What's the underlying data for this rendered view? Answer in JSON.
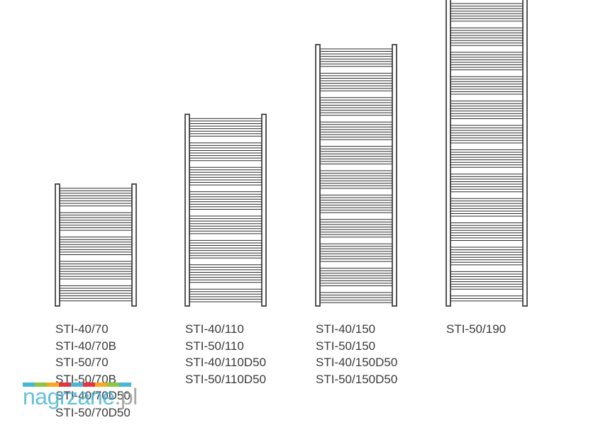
{
  "radiators": [
    {
      "id": "sti-70",
      "height_cm": 70,
      "models": [
        "STI-40/70",
        "STI-40/70B",
        "STI-50/70",
        "STI-50/70B",
        "STI-40/70D50",
        "STI-50/70D50"
      ]
    },
    {
      "id": "sti-110",
      "height_cm": 110,
      "models": [
        "STI-40/110",
        "STI-50/110",
        "STI-40/110D50",
        "STI-50/110D50"
      ]
    },
    {
      "id": "sti-150",
      "height_cm": 150,
      "models": [
        "STI-40/150",
        "STI-50/150",
        "STI-40/150D50",
        "STI-50/150D50"
      ]
    },
    {
      "id": "sti-190",
      "height_cm": 190,
      "models": [
        "STI-50/190"
      ]
    }
  ],
  "colors": {
    "line": "#2b2b2b",
    "text": "#3a3a3a",
    "logo_stripes": [
      "#49b6d8",
      "#8cc63f",
      "#f7a823",
      "#e6333c",
      "#49b6d8",
      "#e6333c",
      "#f7a823",
      "#8cc63f",
      "#49b6d8"
    ]
  },
  "watermark": {
    "part1": "nagrzane",
    "part2": ".pl"
  }
}
